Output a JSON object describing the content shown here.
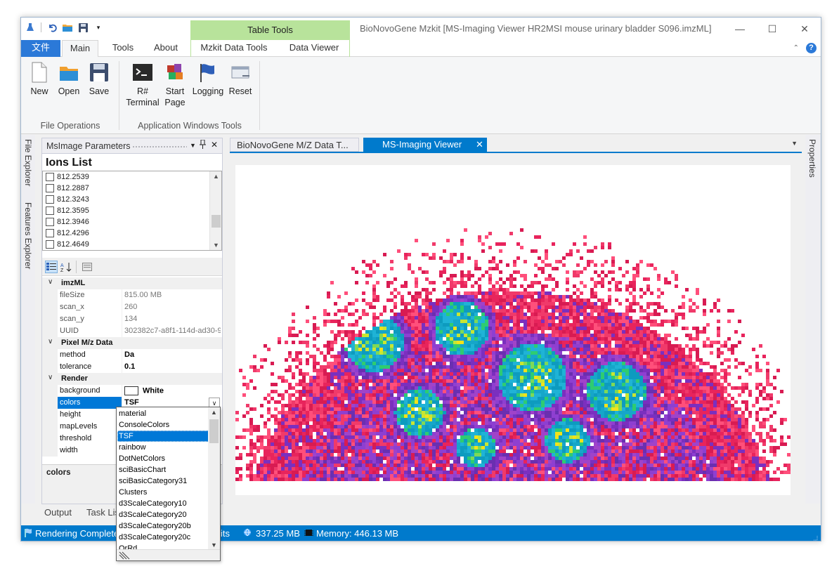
{
  "window": {
    "title": "BioNovoGene Mzkit [MS-Imaging Viewer HR2MSI mouse urinary bladder S096.imzML]",
    "contextual_group": "Table Tools"
  },
  "ribbon": {
    "tabs": [
      "文件",
      "Main",
      "Tools",
      "About",
      "Mzkit Data Tools",
      "Data Viewer"
    ],
    "groups": [
      {
        "label": "File Operations",
        "buttons": [
          {
            "label": "New",
            "icon": "new-file-icon"
          },
          {
            "label": "Open",
            "icon": "open-folder-icon"
          },
          {
            "label": "Save",
            "icon": "save-disk-icon"
          }
        ]
      },
      {
        "label": "Application Windows Tools",
        "buttons": [
          {
            "label": "R#\nTerminal",
            "icon": "terminal-icon"
          },
          {
            "label": "Start\nPage",
            "icon": "start-page-icon"
          },
          {
            "label": "Logging",
            "icon": "logging-flag-icon"
          },
          {
            "label": "Reset",
            "icon": "reset-icon"
          }
        ]
      }
    ]
  },
  "side_tabs": {
    "left": [
      "File Explorer",
      "Features Explorer"
    ],
    "right": "Properties"
  },
  "msimage_panel": {
    "title": "MsImage Parameters",
    "ions_title": "Ions List",
    "ions": [
      "812.2539",
      "812.2887",
      "812.3243",
      "812.3595",
      "812.3946",
      "812.4296",
      "812.4649"
    ],
    "property_grid": [
      {
        "category": "imzML",
        "rows": [
          {
            "name": "fileSize",
            "value": "815.00 MB",
            "readonly": true
          },
          {
            "name": "scan_x",
            "value": "260",
            "readonly": true
          },
          {
            "name": "scan_y",
            "value": "134",
            "readonly": true
          },
          {
            "name": "UUID",
            "value": "302382c7-a8f1-114d-ad30-9",
            "readonly": true
          }
        ]
      },
      {
        "category": "Pixel M/z Data",
        "rows": [
          {
            "name": "method",
            "value": "Da",
            "readonly": false
          },
          {
            "name": "tolerance",
            "value": "0.1",
            "readonly": false
          }
        ]
      },
      {
        "category": "Render",
        "rows": [
          {
            "name": "background",
            "value": "White",
            "readonly": false
          },
          {
            "name": "colors",
            "value": "TSF",
            "readonly": false,
            "selected": true
          },
          {
            "name": "height",
            "value": "",
            "readonly": false
          },
          {
            "name": "mapLevels",
            "value": "",
            "readonly": false
          },
          {
            "name": "threshold",
            "value": "",
            "readonly": false
          },
          {
            "name": "width",
            "value": "",
            "readonly": false
          }
        ]
      }
    ],
    "description_title": "colors"
  },
  "colors_dropdown": {
    "options": [
      "material",
      "ConsoleColors",
      "TSF",
      "rainbow",
      "DotNetColors",
      "sciBasicChart",
      "sciBasicCategory31",
      "Clusters",
      "d3ScaleCategory10",
      "d3ScaleCategory20",
      "d3ScaleCategory20b",
      "d3ScaleCategory20c",
      "OrRd"
    ],
    "selected": "TSF"
  },
  "bottom_tabs": [
    "Output",
    "Task List"
  ],
  "documents": {
    "tabs": [
      {
        "label": "BioNovoGene M/Z Data T...",
        "active": false
      },
      {
        "label": "MS-Imaging Viewer",
        "active": true
      }
    ]
  },
  "status": {
    "message": "Rendering Complete",
    "partial": "its",
    "memory1": "337.25 MB",
    "memory2": "Memory: 446.13 MB"
  },
  "colors": {
    "accent": "#007acc",
    "file_tab": "#2b79d8",
    "context_tab": "#b8e39b"
  }
}
